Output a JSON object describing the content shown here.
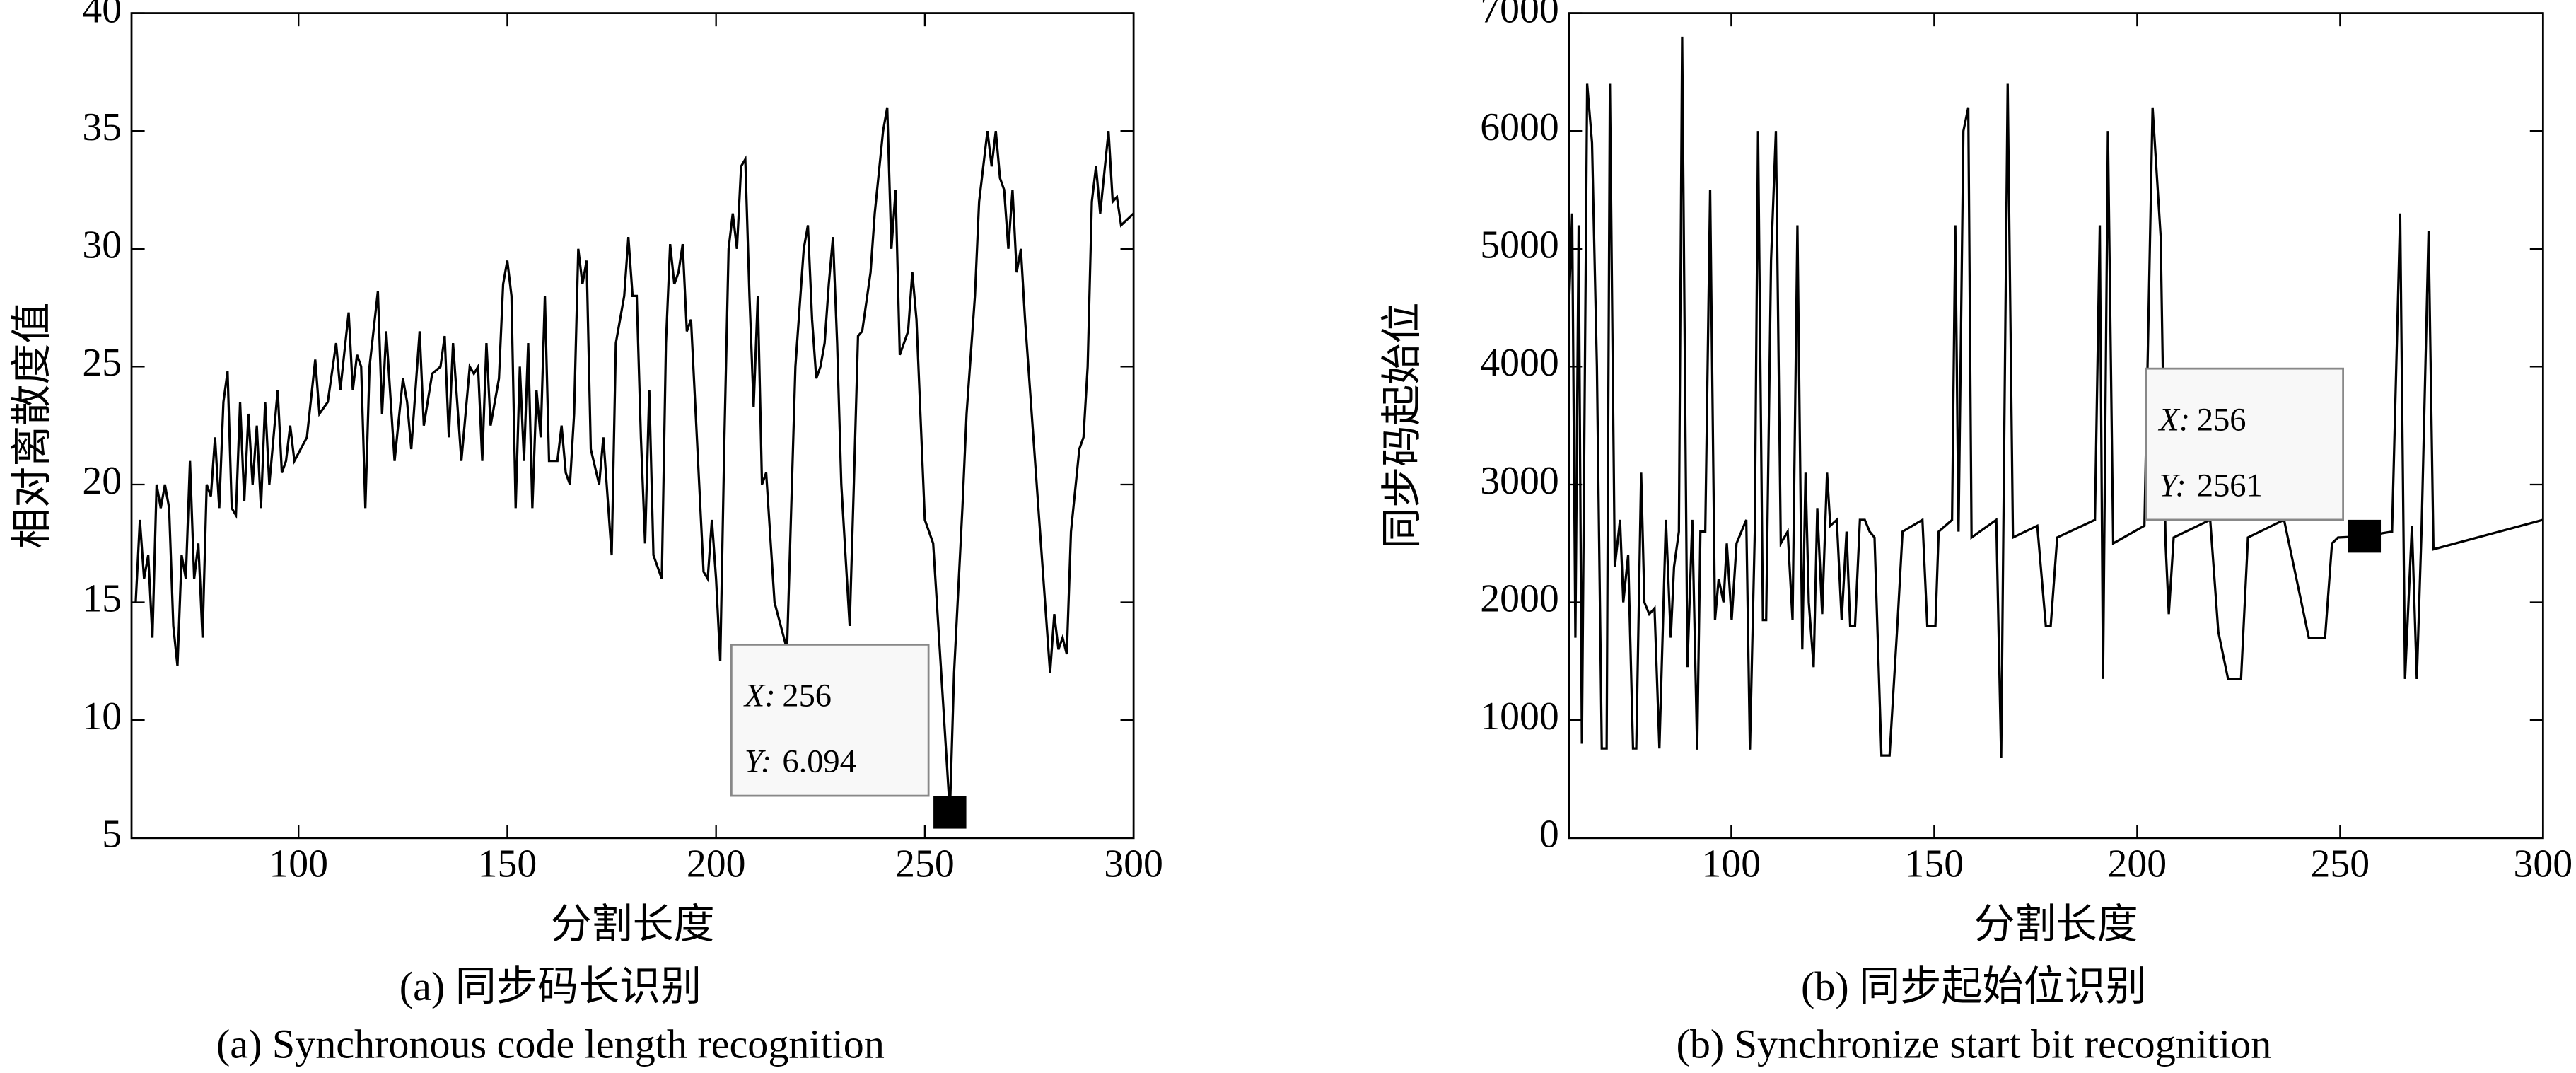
{
  "chart_data": [
    {
      "type": "line",
      "color": "#000000",
      "x": [
        61,
        62,
        63,
        64,
        65,
        66,
        67,
        68,
        69,
        70,
        71,
        72,
        73,
        74,
        75,
        76,
        77,
        78,
        79,
        80,
        81,
        82,
        83,
        84,
        85,
        86,
        87,
        88,
        89,
        90,
        91,
        92,
        93,
        95,
        96,
        97,
        98,
        99,
        102,
        104,
        105,
        107,
        109,
        110,
        112,
        113,
        114,
        115,
        116,
        117,
        119,
        120,
        121,
        123,
        125,
        126,
        127,
        129,
        130,
        132,
        134,
        135,
        136,
        137,
        139,
        141,
        142,
        143,
        144,
        145,
        146,
        148,
        149,
        150,
        151,
        152,
        153,
        154,
        155,
        156,
        157,
        158,
        159,
        160,
        162,
        163,
        164,
        165,
        166,
        167,
        168,
        169,
        170,
        172,
        173,
        175,
        176,
        178,
        179,
        180,
        181,
        182,
        183,
        184,
        185,
        186,
        187,
        188,
        189,
        190,
        191,
        192,
        193,
        194,
        197,
        198,
        199,
        200,
        201,
        202,
        203,
        204,
        205,
        206,
        207,
        208,
        209,
        210,
        211,
        212,
        214,
        217,
        219,
        221,
        222,
        223,
        224,
        225,
        226,
        227,
        228,
        229,
        230,
        232,
        233,
        234,
        235,
        237,
        238,
        240,
        241,
        242,
        243,
        244,
        245,
        246,
        247,
        248,
        250,
        252,
        256,
        257,
        259,
        260,
        262,
        263,
        265,
        266,
        267,
        268,
        269,
        270,
        271,
        272,
        273,
        274,
        276,
        278,
        280,
        281,
        282,
        283,
        284,
        285,
        287,
        288,
        289,
        290,
        291,
        292,
        294,
        295,
        296,
        297,
        300
      ],
      "values": [
        15,
        18.5,
        16,
        17,
        13.5,
        20,
        19,
        20,
        19,
        14,
        12.3,
        17,
        16,
        21,
        16,
        17.5,
        13.5,
        20,
        19.5,
        22,
        19,
        23.5,
        24.8,
        19,
        18.7,
        23.5,
        19.3,
        23,
        20,
        22.5,
        19,
        23.5,
        20,
        24,
        20.5,
        21,
        22.5,
        21,
        22,
        25.3,
        23,
        23.5,
        26,
        24,
        27.3,
        24,
        25.5,
        25,
        19,
        25,
        28.2,
        23,
        26.5,
        21,
        24.5,
        23.5,
        21.5,
        26.5,
        22.5,
        24.7,
        25,
        26.3,
        22,
        26,
        21,
        25,
        24.7,
        25,
        21,
        26,
        22.5,
        24.5,
        28.5,
        29.5,
        28,
        19,
        25,
        21,
        26,
        19,
        24,
        22,
        28,
        21,
        21,
        22.5,
        20.5,
        20,
        23,
        30,
        28.5,
        29.5,
        21.5,
        20,
        22,
        17,
        26,
        28,
        30.5,
        28,
        28,
        22,
        17.5,
        24,
        17,
        16.5,
        16,
        26,
        30.2,
        28.5,
        29,
        30.2,
        26.5,
        27,
        16.3,
        16,
        18.5,
        16,
        12.5,
        22,
        30,
        31.5,
        30,
        33.5,
        33.8,
        28,
        23.3,
        28,
        20,
        20.5,
        15,
        13,
        25,
        30,
        31,
        27,
        24.5,
        25,
        26,
        28.5,
        30.5,
        26,
        20,
        14,
        20,
        26.3,
        26.5,
        29,
        31.5,
        35,
        36,
        30,
        32.5,
        25.5,
        26,
        26.5,
        29,
        27,
        18.5,
        17.5,
        6.094,
        12,
        19,
        23,
        28,
        32,
        35,
        33.5,
        35,
        33,
        32.5,
        30,
        32.5,
        29,
        30,
        27,
        22,
        17,
        12,
        14.5,
        13,
        13.5,
        12.8,
        18,
        21.5,
        22,
        25,
        32,
        33.5,
        31.5,
        35,
        32,
        32.2,
        31,
        31.5
      ],
      "xlim": [
        60,
        300
      ],
      "xticks": [
        100,
        150,
        200,
        250,
        300
      ],
      "ylim": [
        5,
        40
      ],
      "yticks": [
        5,
        10,
        15,
        20,
        25,
        30,
        35,
        40
      ],
      "xlabel": "分割长度",
      "ylabel": "相对离散度值",
      "caption": "(a) 同步码长识别",
      "subcaption": "(a) Synchronous code length recognition",
      "datatip": {
        "x_label": "X:",
        "x": 256,
        "y_label": "Y:",
        "y": 6.094
      }
    },
    {
      "type": "line",
      "color": "#000000",
      "x": [
        60,
        60.8,
        61.6,
        62.4,
        63.2,
        64.5,
        65.7,
        66.9,
        68.1,
        69.3,
        70.1,
        71.3,
        72.6,
        73.4,
        74.6,
        75.8,
        76.6,
        77.8,
        78.6,
        79.8,
        81.1,
        82.3,
        83.9,
        85.1,
        85.9,
        87.1,
        87.9,
        89.2,
        90.4,
        91.6,
        92.4,
        93.6,
        94.8,
        96,
        96.9,
        98.1,
        98.9,
        100.1,
        101.3,
        102.5,
        103.7,
        104.6,
        105.8,
        106.6,
        107.8,
        108.6,
        109.8,
        111,
        112.2,
        113.9,
        115.1,
        116.3,
        117.5,
        118.3,
        119.1,
        120.3,
        121.2,
        122.4,
        123.6,
        124.4,
        126,
        127.2,
        128.4,
        129.3,
        130.5,
        131.7,
        132.9,
        134.1,
        135.3,
        137,
        139,
        141,
        142.2,
        147.1,
        148.3,
        150.3,
        151.1,
        154.4,
        155.2,
        156,
        157.2,
        158.4,
        159.2,
        165.3,
        166.5,
        168.1,
        169.4,
        175.4,
        177.5,
        178.7,
        180.3,
        189.6,
        190.8,
        191.6,
        192.8,
        194.1,
        201.8,
        203.8,
        205.8,
        207,
        207.8,
        209,
        218,
        220,
        222.4,
        225.6,
        227.3,
        236.2,
        242.3,
        246.3,
        248,
        249.5,
        256,
        262.8,
        264.8,
        266,
        267.7,
        268.9,
        270.1,
        271.8,
        273,
        300
      ],
      "values": [
        4500,
        5300,
        1700,
        5200,
        800,
        6400,
        5900,
        4000,
        760,
        760,
        6400,
        2300,
        2700,
        2000,
        2400,
        760,
        760,
        3100,
        2000,
        1900,
        1950,
        760,
        2700,
        1700,
        2300,
        2600,
        6800,
        1450,
        2700,
        750,
        2600,
        2600,
        5500,
        1850,
        2200,
        2000,
        2500,
        1850,
        2500,
        2600,
        2700,
        750,
        2600,
        6000,
        1850,
        1850,
        4900,
        6000,
        2500,
        2600,
        1850,
        5200,
        1600,
        3100,
        2000,
        1450,
        2800,
        1900,
        3100,
        2650,
        2700,
        1850,
        2600,
        1800,
        1800,
        2700,
        2700,
        2600,
        2550,
        700,
        700,
        1850,
        2600,
        2700,
        1800,
        1800,
        2600,
        2700,
        5200,
        2600,
        6000,
        6200,
        2550,
        2700,
        680,
        6400,
        2550,
        2650,
        1800,
        1800,
        2550,
        2700,
        5200,
        1350,
        6000,
        2500,
        2650,
        6200,
        5100,
        2500,
        1900,
        2550,
        2700,
        1750,
        1350,
        1350,
        2550,
        2700,
        1700,
        1700,
        2500,
        2550,
        2561,
        2600,
        5300,
        1350,
        2650,
        1350,
        2650,
        5150,
        2450,
        2700
      ],
      "xlim": [
        60,
        300
      ],
      "xticks": [
        100,
        150,
        200,
        250,
        300
      ],
      "ylim": [
        0,
        7000
      ],
      "yticks": [
        0,
        1000,
        2000,
        3000,
        4000,
        5000,
        6000,
        7000
      ],
      "xlabel": "分割长度",
      "ylabel": "同步码起始位",
      "caption": "(b) 同步起始位识别",
      "subcaption": "(b) Synchronize start bit recognition",
      "datatip": {
        "x_label": "X:",
        "x": 256,
        "y_label": "Y:",
        "y": 2561
      }
    }
  ]
}
